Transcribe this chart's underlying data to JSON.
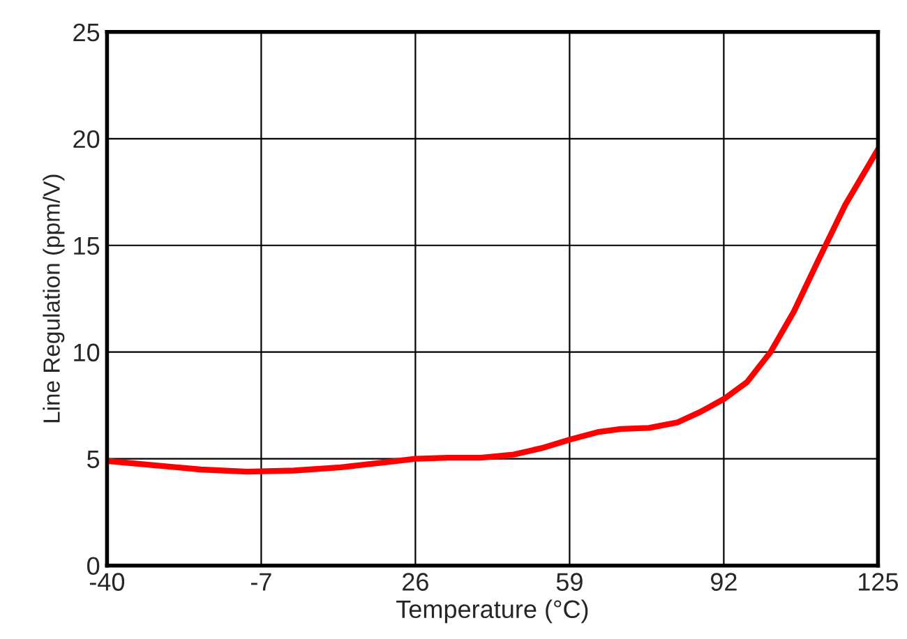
{
  "chart_data": {
    "type": "line",
    "xlabel": "Temperature (°C)",
    "ylabel": "Line Regulation (ppm/V)",
    "xlim": [
      -40,
      125
    ],
    "xticks": [
      -40,
      -7,
      26,
      59,
      92,
      125
    ],
    "ylim": [
      0,
      25
    ],
    "yticks": [
      0,
      5,
      10,
      15,
      20,
      25
    ],
    "grid": true,
    "series": [
      {
        "color": "#ff0000",
        "x": [
          -40,
          -30,
          -20,
          -10,
          0,
          10,
          20,
          26,
          33,
          40,
          47,
          53,
          59,
          65,
          70,
          76,
          82,
          87,
          92,
          97,
          102,
          107,
          112,
          118,
          125
        ],
        "values": [
          4.9,
          4.7,
          4.5,
          4.4,
          4.45,
          4.6,
          4.85,
          5.0,
          5.05,
          5.05,
          5.2,
          5.5,
          5.9,
          6.25,
          6.4,
          6.45,
          6.7,
          7.2,
          7.8,
          8.6,
          10.0,
          11.9,
          14.2,
          16.9,
          19.5
        ]
      }
    ]
  }
}
